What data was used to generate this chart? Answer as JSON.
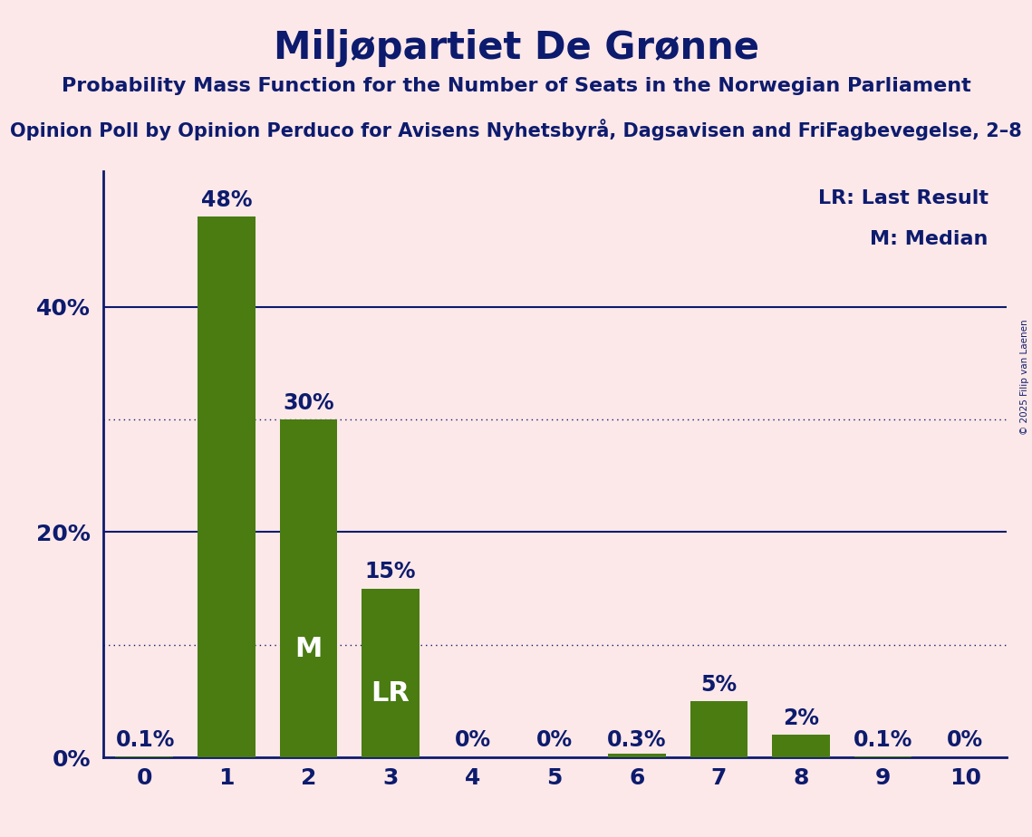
{
  "title": "Miljøpartiet De Grønne",
  "subtitle": "Probability Mass Function for the Number of Seats in the Norwegian Parliament",
  "sub_subtitle": "Opinion Poll by Opinion Perduco for Avisens Nyhetsbyrå, Dagsavisen and FriFagbevegelse, 2–8",
  "copyright": "© 2025 Filip van Laenen",
  "categories": [
    0,
    1,
    2,
    3,
    4,
    5,
    6,
    7,
    8,
    9,
    10
  ],
  "values": [
    0.1,
    48,
    30,
    15,
    0,
    0,
    0.3,
    5,
    2,
    0.1,
    0
  ],
  "bar_labels": [
    "0.1%",
    "48%",
    "30%",
    "15%",
    "0%",
    "0%",
    "0.3%",
    "5%",
    "2%",
    "0.1%",
    "0%"
  ],
  "bar_color": "#4a7c12",
  "background_color": "#fce8e8",
  "text_color": "#0d1b6e",
  "ylim": [
    0,
    52
  ],
  "yticks": [
    0,
    20,
    40
  ],
  "dotted_lines": [
    10,
    30
  ],
  "median_bar": 2,
  "lr_bar": 3,
  "legend_lr": "LR: Last Result",
  "legend_m": "M: Median",
  "title_fontsize": 30,
  "subtitle_fontsize": 16,
  "sub_subtitle_fontsize": 15,
  "bar_label_fontsize": 17,
  "axis_label_fontsize": 18,
  "legend_fontsize": 16
}
